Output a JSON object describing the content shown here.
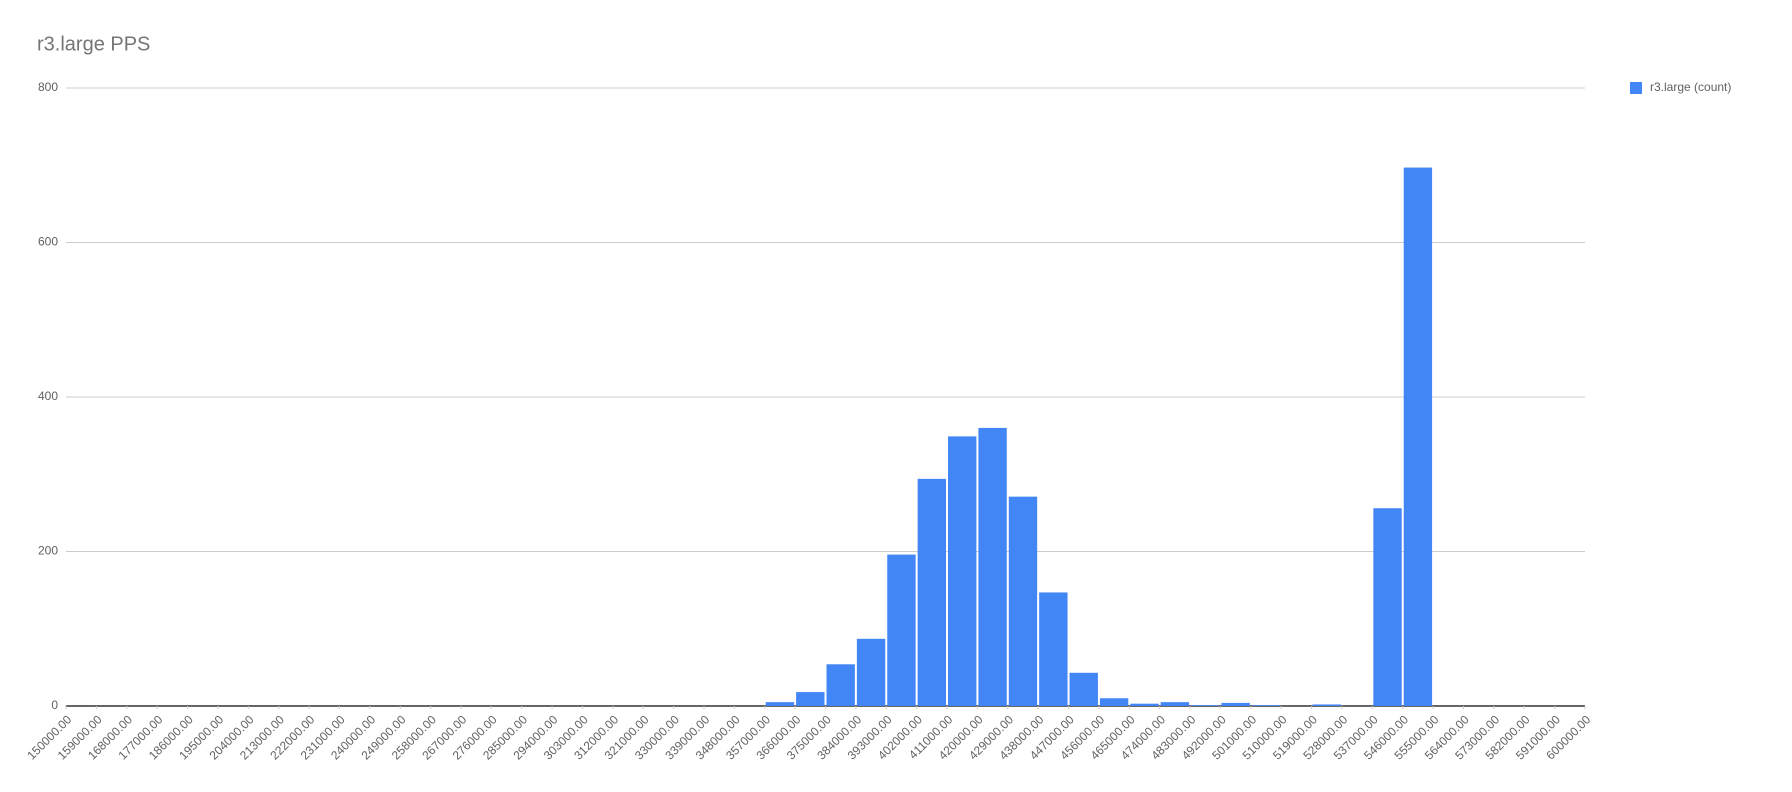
{
  "chart_data": {
    "type": "histogram",
    "title": "r3.large PPS",
    "series": [
      {
        "name": "r3.large (count)",
        "color": "#4285f4",
        "values": [
          0,
          0,
          0,
          0,
          0,
          0,
          0,
          0,
          0,
          0,
          0,
          0,
          0,
          0,
          0,
          0,
          0,
          0,
          0,
          0,
          0,
          0,
          0,
          5,
          18,
          54,
          87,
          196,
          294,
          349,
          360,
          271,
          147,
          43,
          10,
          3,
          5,
          1,
          4,
          1,
          0,
          2,
          0,
          256,
          697,
          0,
          0,
          0,
          0,
          0
        ]
      }
    ],
    "bins": [
      150000,
      159000,
      168000,
      177000,
      186000,
      195000,
      204000,
      213000,
      222000,
      231000,
      240000,
      249000,
      258000,
      267000,
      276000,
      285000,
      294000,
      303000,
      312000,
      321000,
      330000,
      339000,
      348000,
      357000,
      366000,
      375000,
      384000,
      393000,
      402000,
      411000,
      420000,
      429000,
      438000,
      447000,
      456000,
      465000,
      474000,
      483000,
      492000,
      501000,
      510000,
      519000,
      528000,
      537000,
      546000,
      555000,
      564000,
      573000,
      582000,
      591000,
      600000
    ],
    "xlim": [
      150000,
      600000
    ],
    "xticks": [
      {
        "value": 150000,
        "label": "150000.00"
      },
      {
        "value": 159000,
        "label": "159000.00"
      },
      {
        "value": 168000,
        "label": "168000.00"
      },
      {
        "value": 177000,
        "label": "177000.00"
      },
      {
        "value": 186000,
        "label": "186000.00"
      },
      {
        "value": 195000,
        "label": "195000.00"
      },
      {
        "value": 204000,
        "label": "204000.00"
      },
      {
        "value": 213000,
        "label": "213000.00"
      },
      {
        "value": 222000,
        "label": "222000.00"
      },
      {
        "value": 231000,
        "label": "231000.00"
      },
      {
        "value": 240000,
        "label": "240000.00"
      },
      {
        "value": 249000,
        "label": "249000.00"
      },
      {
        "value": 258000,
        "label": "258000.00"
      },
      {
        "value": 267000,
        "label": "267000.00"
      },
      {
        "value": 276000,
        "label": "276000.00"
      },
      {
        "value": 285000,
        "label": "285000.00"
      },
      {
        "value": 294000,
        "label": "294000.00"
      },
      {
        "value": 303000,
        "label": "303000.00"
      },
      {
        "value": 312000,
        "label": "312000.00"
      },
      {
        "value": 321000,
        "label": "321000.00"
      },
      {
        "value": 330000,
        "label": "330000.00"
      },
      {
        "value": 339000,
        "label": "339000.00"
      },
      {
        "value": 348000,
        "label": "348000.00"
      },
      {
        "value": 357000,
        "label": "357000.00"
      },
      {
        "value": 366000,
        "label": "366000.00"
      },
      {
        "value": 375000,
        "label": "375000.00"
      },
      {
        "value": 384000,
        "label": "384000.00"
      },
      {
        "value": 393000,
        "label": "393000.00"
      },
      {
        "value": 402000,
        "label": "402000.00"
      },
      {
        "value": 411000,
        "label": "411000.00"
      },
      {
        "value": 420000,
        "label": "420000.00"
      },
      {
        "value": 429000,
        "label": "429000.00"
      },
      {
        "value": 438000,
        "label": "438000.00"
      },
      {
        "value": 447000,
        "label": "447000.00"
      },
      {
        "value": 456000,
        "label": "456000.00"
      },
      {
        "value": 465000,
        "label": "465000.00"
      },
      {
        "value": 474000,
        "label": "474000.00"
      },
      {
        "value": 483000,
        "label": "483000.00"
      },
      {
        "value": 492000,
        "label": "492000.00"
      },
      {
        "value": 501000,
        "label": "501000.00"
      },
      {
        "value": 510000,
        "label": "510000.00"
      },
      {
        "value": 519000,
        "label": "519000.00"
      },
      {
        "value": 528000,
        "label": "528000.00"
      },
      {
        "value": 537000,
        "label": "537000.00"
      },
      {
        "value": 546000,
        "label": "546000.00"
      },
      {
        "value": 555000,
        "label": "555000.00"
      },
      {
        "value": 564000,
        "label": "564000.00"
      },
      {
        "value": 573000,
        "label": "573000.00"
      },
      {
        "value": 582000,
        "label": "582000.00"
      },
      {
        "value": 591000,
        "label": "591000.00"
      },
      {
        "value": 600000,
        "label": "600000.00"
      }
    ],
    "ylim": [
      0,
      800
    ],
    "yticks": [
      0,
      200,
      400,
      600,
      800
    ],
    "grid": true,
    "legend": "right"
  }
}
